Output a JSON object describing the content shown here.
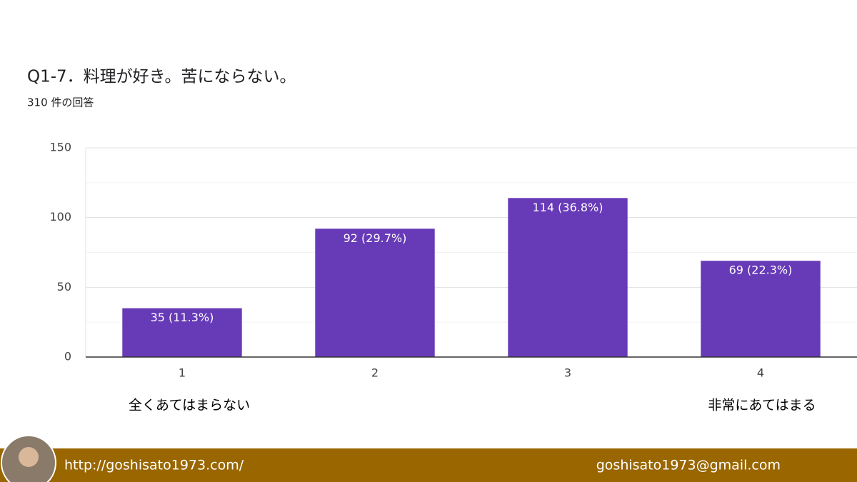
{
  "chart_data": {
    "type": "bar",
    "title": "Q1-7．料理が好き。苦にならない。",
    "subtitle": "310 件の回答",
    "categories": [
      "1",
      "2",
      "3",
      "4"
    ],
    "values": [
      35,
      92,
      114,
      69
    ],
    "value_labels": [
      "35 (11.3%)",
      "92 (29.7%)",
      "114 (36.8%)",
      "69 (22.3%)"
    ],
    "color": "#673ab7",
    "ylim": [
      0,
      150
    ],
    "yticks": [
      0,
      50,
      100,
      150
    ],
    "minor_yticks": [
      25,
      75,
      125
    ],
    "grid": true
  },
  "scale_labels": {
    "low": "全くあてはまらない",
    "high": "非常にあてはまる"
  },
  "footer": {
    "url": "http://goshisato1973.com/",
    "email": "goshisato1973@gmail.com"
  }
}
